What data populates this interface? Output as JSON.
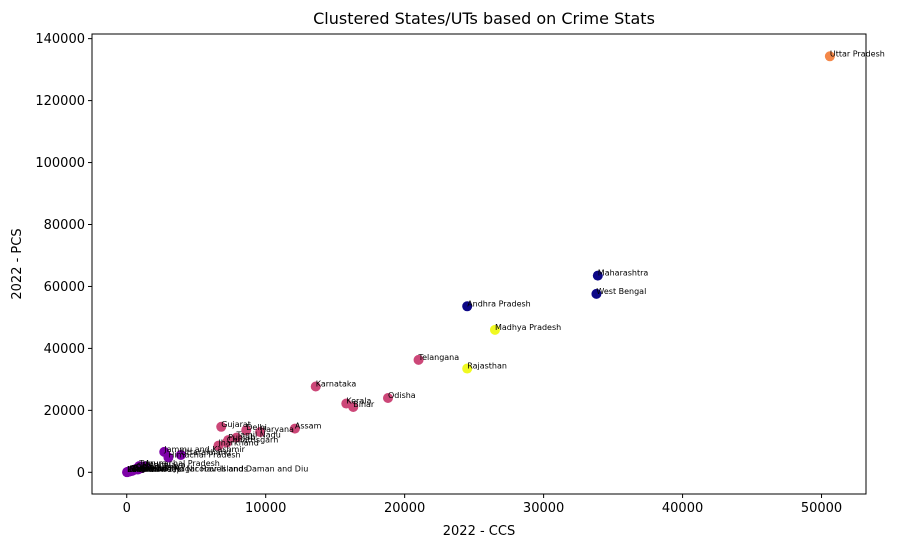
{
  "chart_data": {
    "type": "scatter",
    "title": "Clustered States/UTs based on Crime Stats",
    "xlabel": "2022 - CCS",
    "ylabel": "2022 - PCS",
    "xlim": [
      -2500,
      53200
    ],
    "ylim": [
      -7000,
      141500
    ],
    "xticks": [
      0,
      10000,
      20000,
      30000,
      40000,
      50000
    ],
    "yticks": [
      0,
      20000,
      40000,
      60000,
      80000,
      100000,
      120000,
      140000
    ],
    "grid": false,
    "colors": {
      "cluster_navy": "#0d0887",
      "cluster_magenta": "#cc4778",
      "cluster_purple": "#7e03a8",
      "cluster_orange": "#f48849",
      "cluster_yellow": "#f0f921"
    },
    "points": [
      {
        "label": "Uttar Pradesh",
        "x": 50600,
        "y": 134300,
        "cluster": "cluster_orange"
      },
      {
        "label": "Maharashtra",
        "x": 33900,
        "y": 63500,
        "cluster": "cluster_navy"
      },
      {
        "label": "West Bengal",
        "x": 33800,
        "y": 57600,
        "cluster": "cluster_navy"
      },
      {
        "label": "Andhra Pradesh",
        "x": 24500,
        "y": 53600,
        "cluster": "cluster_navy"
      },
      {
        "label": "Madhya Pradesh",
        "x": 26500,
        "y": 46000,
        "cluster": "cluster_yellow"
      },
      {
        "label": "Telangana",
        "x": 21000,
        "y": 36300,
        "cluster": "cluster_magenta"
      },
      {
        "label": "Rajasthan",
        "x": 24500,
        "y": 33500,
        "cluster": "cluster_yellow"
      },
      {
        "label": "Karnataka",
        "x": 13600,
        "y": 27700,
        "cluster": "cluster_magenta"
      },
      {
        "label": "Odisha",
        "x": 18800,
        "y": 24000,
        "cluster": "cluster_magenta"
      },
      {
        "label": "Kerala",
        "x": 15800,
        "y": 22200,
        "cluster": "cluster_magenta"
      },
      {
        "label": "Bihar",
        "x": 16300,
        "y": 21100,
        "cluster": "cluster_magenta"
      },
      {
        "label": "Gujarat",
        "x": 6800,
        "y": 14700,
        "cluster": "cluster_magenta"
      },
      {
        "label": "Assam",
        "x": 12100,
        "y": 14100,
        "cluster": "cluster_magenta"
      },
      {
        "label": "Delhi",
        "x": 8600,
        "y": 13600,
        "cluster": "cluster_magenta"
      },
      {
        "label": "Haryana",
        "x": 9600,
        "y": 13000,
        "cluster": "cluster_magenta"
      },
      {
        "label": "Tamil Nadu",
        "x": 7900,
        "y": 11200,
        "cluster": "cluster_magenta"
      },
      {
        "label": "Punjab",
        "x": 7300,
        "y": 10400,
        "cluster": "cluster_magenta"
      },
      {
        "label": "Chhattisgarh",
        "x": 7200,
        "y": 9600,
        "cluster": "cluster_magenta"
      },
      {
        "label": "Jharkhand",
        "x": 6600,
        "y": 8600,
        "cluster": "cluster_magenta"
      },
      {
        "label": "Jammu and Kashmir",
        "x": 2700,
        "y": 6600,
        "cluster": "cluster_purple"
      },
      {
        "label": "Uttarakhand",
        "x": 3900,
        "y": 5600,
        "cluster": "cluster_purple"
      },
      {
        "label": "Himachal Pradesh",
        "x": 3000,
        "y": 4800,
        "cluster": "cluster_purple"
      },
      {
        "label": "Tripura",
        "x": 900,
        "y": 2000,
        "cluster": "cluster_purple"
      },
      {
        "label": "Arunachal Pradesh",
        "x": 1300,
        "y": 2000,
        "cluster": "cluster_purple"
      },
      {
        "label": "Meghalaya",
        "x": 1100,
        "y": 1500,
        "cluster": "cluster_purple"
      },
      {
        "label": "Goa",
        "x": 700,
        "y": 1200,
        "cluster": "cluster_purple"
      },
      {
        "label": "Manipur",
        "x": 800,
        "y": 900,
        "cluster": "cluster_purple"
      },
      {
        "label": "Chandigarh",
        "x": 500,
        "y": 700,
        "cluster": "cluster_purple"
      },
      {
        "label": "Puducherry",
        "x": 400,
        "y": 500,
        "cluster": "cluster_purple"
      },
      {
        "label": "Mizoram",
        "x": 300,
        "y": 400,
        "cluster": "cluster_purple"
      },
      {
        "label": "Nagaland",
        "x": 200,
        "y": 300,
        "cluster": "cluster_purple"
      },
      {
        "label": "Sikkim",
        "x": 150,
        "y": 250,
        "cluster": "cluster_purple"
      },
      {
        "label": "Andaman and Nicobar Islands",
        "x": 100,
        "y": 200,
        "cluster": "cluster_purple"
      },
      {
        "label": "Ladakh",
        "x": 50,
        "y": 100,
        "cluster": "cluster_purple"
      },
      {
        "label": "Lakshadweep",
        "x": 20,
        "y": 50,
        "cluster": "cluster_purple"
      },
      {
        "label": "Dadra and Nagar Haveli and Daman and Diu",
        "x": 200,
        "y": 300,
        "cluster": "cluster_purple"
      }
    ]
  }
}
